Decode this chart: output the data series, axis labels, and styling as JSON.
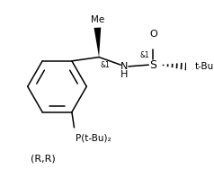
{
  "bg_color": "#ffffff",
  "line_color": "#000000",
  "fig_width": 2.38,
  "fig_height": 2.08,
  "dpi": 100,
  "label_RR": "(R,R)",
  "label_Me": "Me",
  "label_H": "H",
  "label_N": "N",
  "label_S": "S",
  "label_tBu": "t-Bu",
  "label_PtBu2": "P(t-Bu)₂",
  "label_O": "O",
  "stereo1": "&1",
  "stereo2": "&1"
}
